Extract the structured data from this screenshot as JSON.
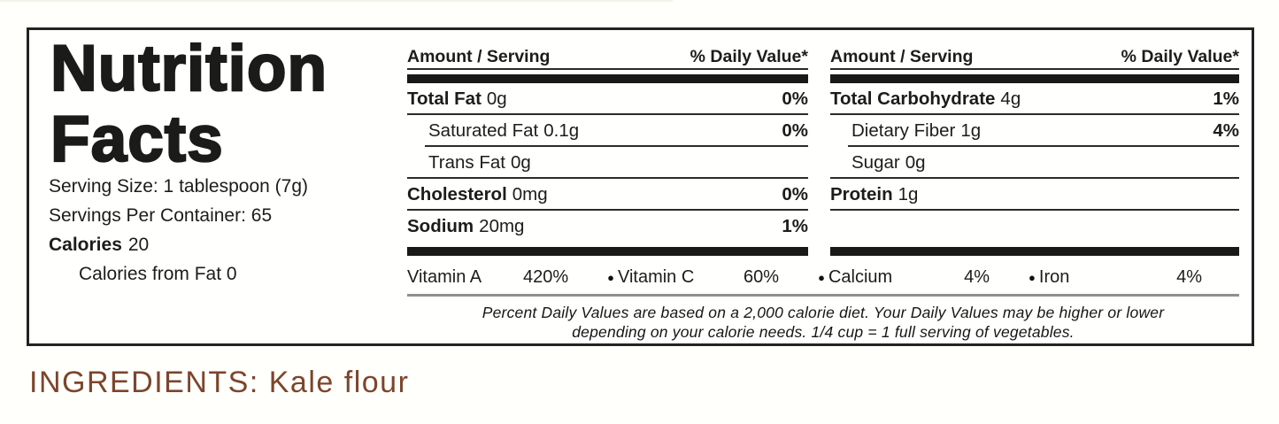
{
  "label": {
    "title_line1": "Nutrition",
    "title_line2": "Facts",
    "serving_size": "Serving Size: 1 tablespoon (7g)",
    "servings_per_container": "Servings Per Container: 65",
    "calories_label": "Calories",
    "calories_value": "20",
    "calories_from_fat": "Calories from Fat 0",
    "columns": [
      {
        "header_left": "Amount / Serving",
        "header_right": "% Daily Value*",
        "rows": [
          {
            "name": "Total Fat",
            "amount": "0g",
            "dv": "0%"
          },
          {
            "name": "Saturated Fat",
            "amount": "0.1g",
            "dv": "0%"
          },
          {
            "name": "Trans Fat",
            "amount": "0g",
            "dv": ""
          },
          {
            "name": "Cholesterol",
            "amount": "0mg",
            "dv": "0%"
          },
          {
            "name": "Sodium",
            "amount": "20mg",
            "dv": "1%"
          }
        ]
      },
      {
        "header_left": "Amount / Serving",
        "header_right": "% Daily Value*",
        "rows": [
          {
            "name": "Total Carbohydrate",
            "amount": "4g",
            "dv": "1%"
          },
          {
            "name": "Dietary Fiber",
            "amount": "1g",
            "dv": "4%"
          },
          {
            "name": "Sugar",
            "amount": "0g",
            "dv": ""
          },
          {
            "name": "Protein",
            "amount": "1g",
            "dv": ""
          }
        ]
      }
    ],
    "bullet_glyph": "●",
    "micronutrients": [
      {
        "name": "Vitamin A",
        "value": "420%"
      },
      {
        "name": "Vitamin C",
        "value": "60%"
      },
      {
        "name": "Calcium",
        "value": "4%"
      },
      {
        "name": "Iron",
        "value": "4%"
      }
    ],
    "footnote_line1": "Percent Daily Values are based on a 2,000 calorie diet. Your Daily Values may be higher or lower",
    "footnote_line2": "depending on your calorie needs. 1/4 cup = 1 full serving of vegetables."
  },
  "ingredients": {
    "text": "INGREDIENTS: Kale flour"
  },
  "colors": {
    "text": "#1c1c1a",
    "thick_bar": "#191917",
    "thin_rule": "#2b2b2b",
    "footnote_divider": "#8f8f8f",
    "ingredients_text": "#7d452b",
    "background": "#fffffc"
  }
}
